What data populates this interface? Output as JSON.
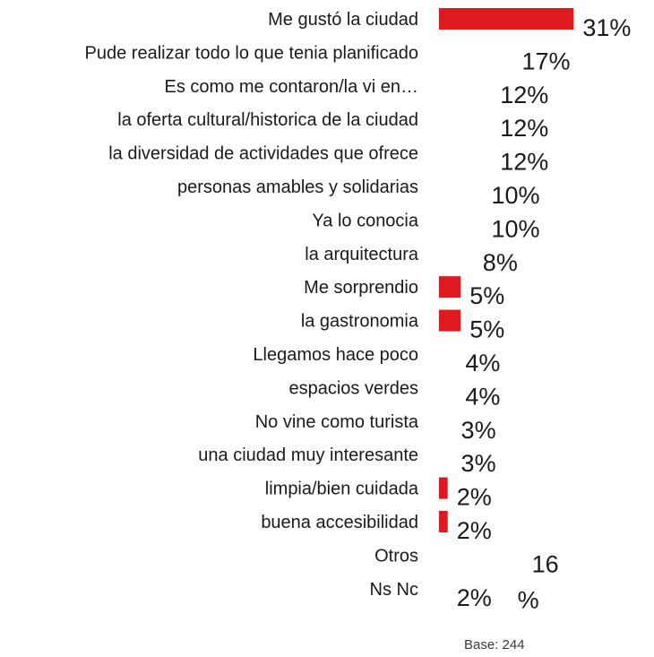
{
  "chart_data": {
    "type": "bar",
    "orientation": "horizontal",
    "categories": [
      "Me gustó la ciudad",
      "Pude realizar todo lo que tenia planificado",
      "Es como me contaron/la vi en…",
      "la oferta cultural/historica de la ciudad",
      "la diversidad de actividades que ofrece",
      "personas amables y solidarias",
      "Ya lo conocia",
      "la arquitectura",
      "Me sorprendio",
      "la gastronomia",
      "Llegamos hace poco",
      "espacios verdes",
      "No vine como turista",
      "una ciudad muy interesante",
      "limpia/bien cuidada",
      "buena accesibilidad",
      "Otros",
      "Ns Nc"
    ],
    "values": [
      31,
      17,
      12,
      12,
      12,
      10,
      10,
      8,
      5,
      5,
      4,
      4,
      3,
      3,
      2,
      2,
      16,
      2
    ],
    "value_labels": [
      "31%",
      "17%",
      "12%",
      "12%",
      "12%",
      "10%",
      "10%",
      "8%",
      "5%",
      "5%",
      "4%",
      "4%",
      "3%",
      "3%",
      "2%",
      "2%",
      "16 %",
      "2%"
    ],
    "bar_color": "#e0191f",
    "visible_bars": [
      true,
      false,
      false,
      false,
      false,
      false,
      false,
      false,
      true,
      true,
      false,
      false,
      false,
      false,
      true,
      true,
      false,
      false
    ],
    "grid": false,
    "legend": "none"
  },
  "footer": {
    "base_note": "Base: 244"
  }
}
